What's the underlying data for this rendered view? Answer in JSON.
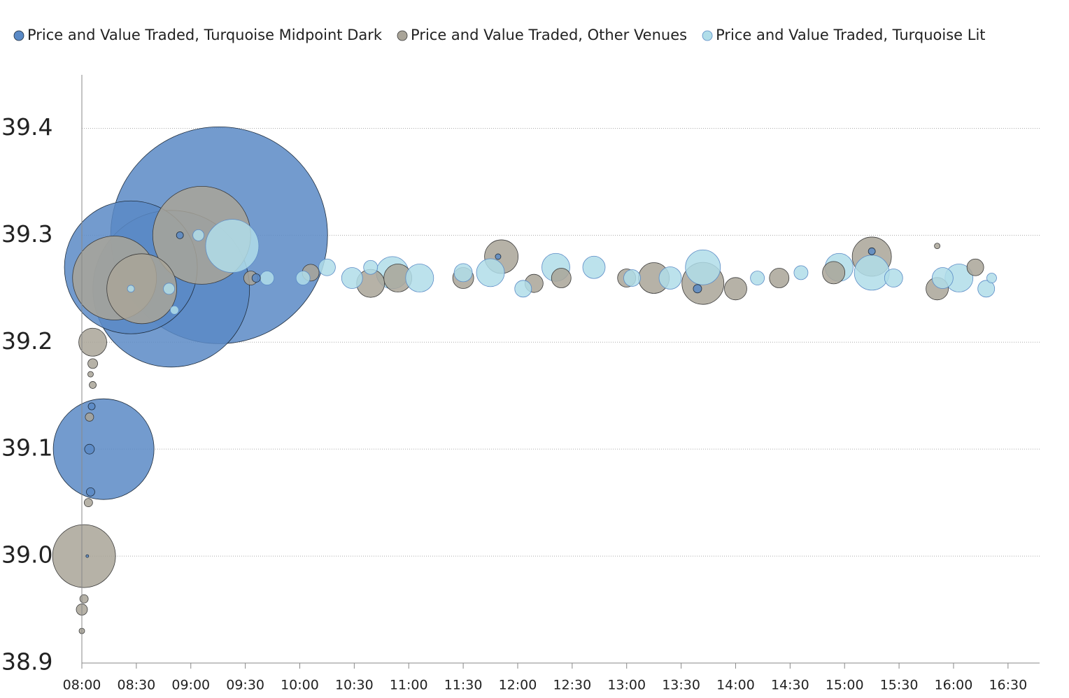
{
  "chart_data": {
    "type": "bubble",
    "series": [
      {
        "name": "Price and Value Traded, Turquoise Midpoint Dark",
        "color": "#5a8ac6",
        "stroke": "#1f2d3d",
        "x": [
          9.26,
          8.82,
          8.45,
          8.2,
          8.05,
          8.09,
          8.08,
          8.07,
          9.6,
          11.82,
          15.25,
          13.65,
          8.9
        ],
        "values": [
          39.3,
          39.25,
          39.27,
          39.1,
          39.0,
          39.14,
          39.06,
          39.1,
          39.26,
          39.28,
          39.285,
          39.25,
          39.3
        ],
        "sizes": [
          24025,
          12544,
          9025,
          5184,
          4,
          25,
          36,
          49,
          36,
          16,
          25,
          36,
          25
        ]
      },
      {
        "name": "Price and Value Traded, Other Venues",
        "color": "#a9a498",
        "stroke": "#3a3a3a",
        "x": [
          8.02,
          8.1,
          8.3,
          8.55,
          9.1,
          8.0,
          8.0,
          8.02,
          8.06,
          8.07,
          8.1,
          8.08,
          8.1,
          10.65,
          11.5,
          11.85,
          12.4,
          13.25,
          13.7,
          14.0,
          14.4,
          15.25,
          15.85,
          15.85,
          16.2,
          12.15,
          10.9,
          14.9,
          13.0,
          9.55,
          10.1
        ],
        "values": [
          39.0,
          39.2,
          39.26,
          39.25,
          39.3,
          38.93,
          38.95,
          38.96,
          39.05,
          39.13,
          39.16,
          39.17,
          39.18,
          39.255,
          39.26,
          39.28,
          39.26,
          39.26,
          39.255,
          39.25,
          39.26,
          39.28,
          39.25,
          39.29,
          39.27,
          39.255,
          39.26,
          39.265,
          39.26,
          39.26,
          39.265
        ],
        "sizes": [
          2025,
          400,
          3600,
          2500,
          4900,
          16,
          64,
          36,
          36,
          36,
          25,
          16,
          49,
          400,
          225,
          576,
          196,
          484,
          900,
          256,
          196,
          784,
          256,
          16,
          144,
          169,
          400,
          256,
          169,
          100,
          144
        ]
      },
      {
        "name": "Price and Value Traded, Turquoise Lit",
        "color": "#b0dde9",
        "stroke": "#5b8bc6",
        "x": [
          9.38,
          9.07,
          8.8,
          8.85,
          8.45,
          9.7,
          10.03,
          10.25,
          10.48,
          10.65,
          10.85,
          11.1,
          11.5,
          11.75,
          12.05,
          12.35,
          12.7,
          13.05,
          13.4,
          13.7,
          14.2,
          14.6,
          14.95,
          15.25,
          15.45,
          15.9,
          16.05,
          16.3,
          16.35
        ],
        "values": [
          39.29,
          39.3,
          39.25,
          39.23,
          39.25,
          39.26,
          39.26,
          39.27,
          39.26,
          39.27,
          39.265,
          39.26,
          39.265,
          39.265,
          39.25,
          39.27,
          39.27,
          39.26,
          39.26,
          39.27,
          39.26,
          39.265,
          39.27,
          39.265,
          39.26,
          39.26,
          39.26,
          39.25,
          39.26
        ],
        "sizes": [
          1444,
          64,
          64,
          36,
          25,
          100,
          100,
          144,
          225,
          100,
          529,
          400,
          169,
          400,
          144,
          400,
          256,
          144,
          256,
          625,
          100,
          100,
          400,
          625,
          169,
          225,
          400,
          144,
          49
        ]
      }
    ],
    "xlim": [
      8,
      16.79
    ],
    "ylim": [
      38.9,
      39.45
    ],
    "xticks": [
      {
        "value": 8,
        "label": "08:00"
      },
      {
        "value": 8.5,
        "label": "08:30"
      },
      {
        "value": 9,
        "label": "09:00"
      },
      {
        "value": 9.5,
        "label": "09:30"
      },
      {
        "value": 10,
        "label": "10:00"
      },
      {
        "value": 10.5,
        "label": "10:30"
      },
      {
        "value": 11,
        "label": "11:00"
      },
      {
        "value": 11.5,
        "label": "11:30"
      },
      {
        "value": 12,
        "label": "12:00"
      },
      {
        "value": 12.5,
        "label": "12:30"
      },
      {
        "value": 13,
        "label": "13:00"
      },
      {
        "value": 13.5,
        "label": "13:30"
      },
      {
        "value": 14,
        "label": "14:00"
      },
      {
        "value": 14.5,
        "label": "14:30"
      },
      {
        "value": 15,
        "label": "15:00"
      },
      {
        "value": 15.5,
        "label": "15:30"
      },
      {
        "value": 16,
        "label": "16:00"
      },
      {
        "value": 16.5,
        "label": "16:30"
      }
    ],
    "yticks": [
      {
        "value": 38.9,
        "label": "38.9"
      },
      {
        "value": 39.0,
        "label": "39.0"
      },
      {
        "value": 39.1,
        "label": "39.1"
      },
      {
        "value": 39.2,
        "label": "39.2"
      },
      {
        "value": 39.3,
        "label": "39.3"
      },
      {
        "value": 39.4,
        "label": "39.4"
      }
    ],
    "grid": true,
    "legend": "top"
  }
}
